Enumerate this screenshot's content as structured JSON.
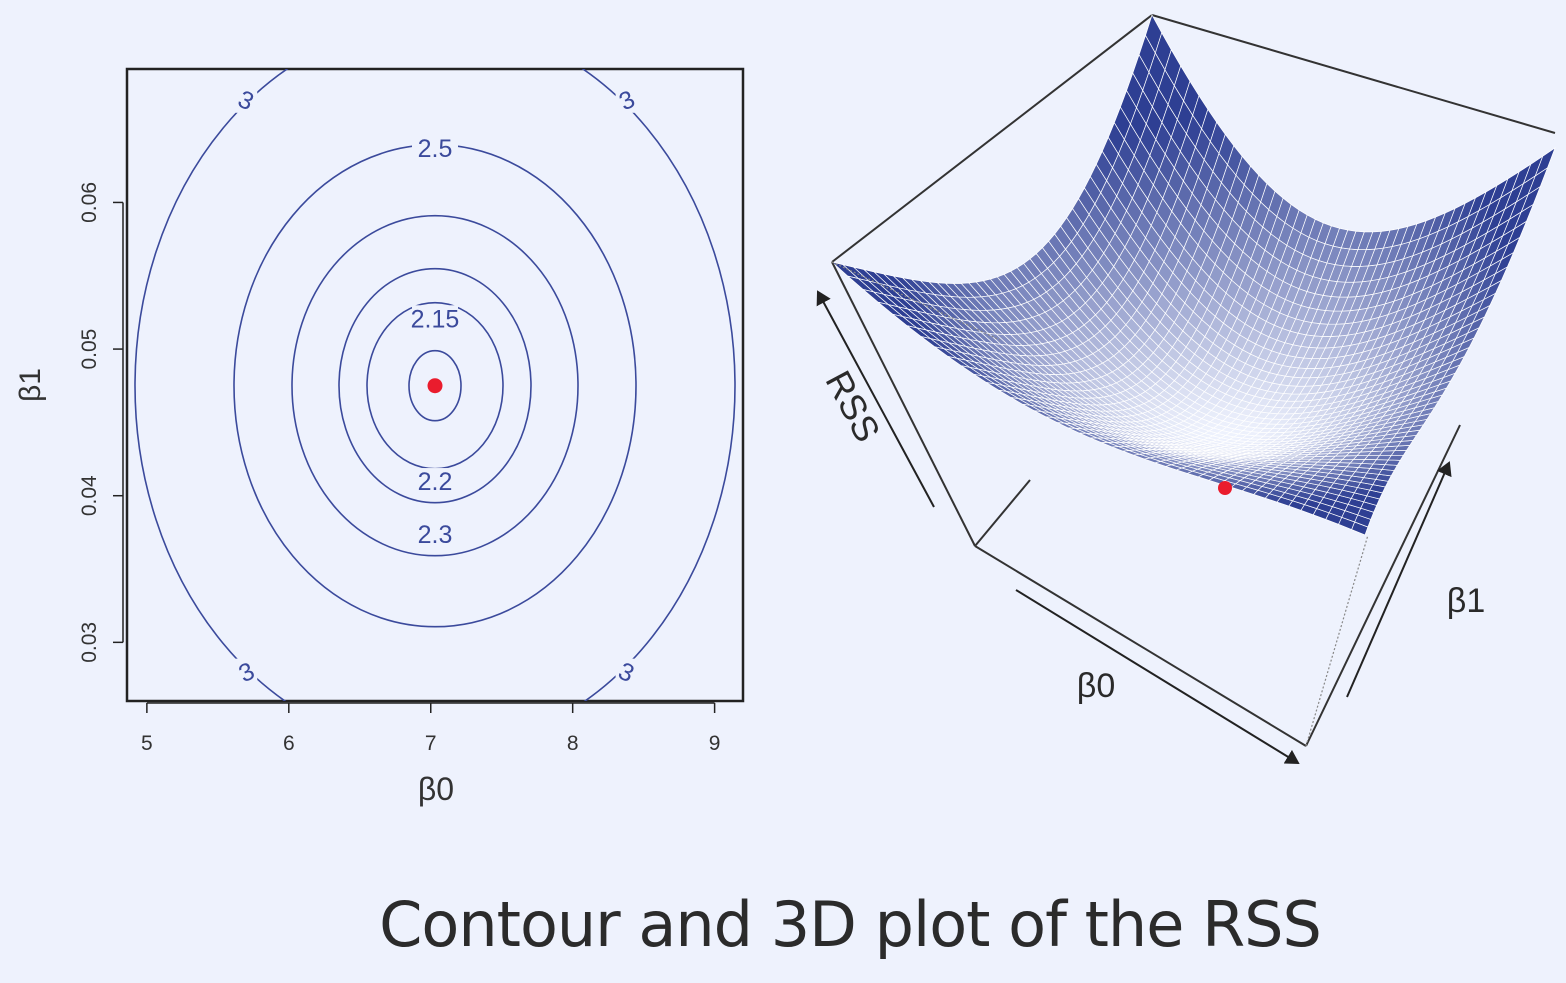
{
  "caption": "Contour and 3D plot of the RSS",
  "colors": {
    "background": "#eef2fd",
    "contour": "#3b4a9c",
    "surface": "#2e3f93",
    "minimum": "#ea1c2d",
    "axis": "#222222"
  },
  "chart_data": [
    {
      "type": "contour",
      "xlabel": "β0",
      "ylabel": "β1",
      "xlim": [
        4.86,
        9.2
      ],
      "ylim": [
        0.026,
        0.0691
      ],
      "xticks": [
        "5",
        "6",
        "7",
        "8",
        "9"
      ],
      "yticks": [
        "0.03",
        "0.04",
        "0.05",
        "0.06"
      ],
      "minimum": {
        "x": 7.03,
        "y": 0.0475
      },
      "contours": [
        {
          "level": "2.15",
          "label_pos": {
            "x": 7.03,
            "y": 0.0521
          }
        },
        {
          "level": "2.2",
          "label_pos": {
            "x": 7.03,
            "y": 0.041
          }
        },
        {
          "level": "2.3",
          "label_pos": {
            "x": 7.03,
            "y": 0.0374
          }
        },
        {
          "level": "2.5",
          "label_pos": {
            "x": 7.03,
            "y": 0.0637
          }
        },
        {
          "level": "3",
          "label_pos": {
            "x": 5.7,
            "y": 0.067
          }
        },
        {
          "level": "3",
          "label_pos": {
            "x": 8.38,
            "y": 0.067
          }
        },
        {
          "level": "3",
          "label_pos": {
            "x": 5.7,
            "y": 0.028
          }
        },
        {
          "level": "3",
          "label_pos": {
            "x": 8.38,
            "y": 0.028
          }
        }
      ]
    },
    {
      "type": "surface",
      "axis_labels": {
        "z": "RSS",
        "x": "β0",
        "y": "β1"
      }
    }
  ]
}
